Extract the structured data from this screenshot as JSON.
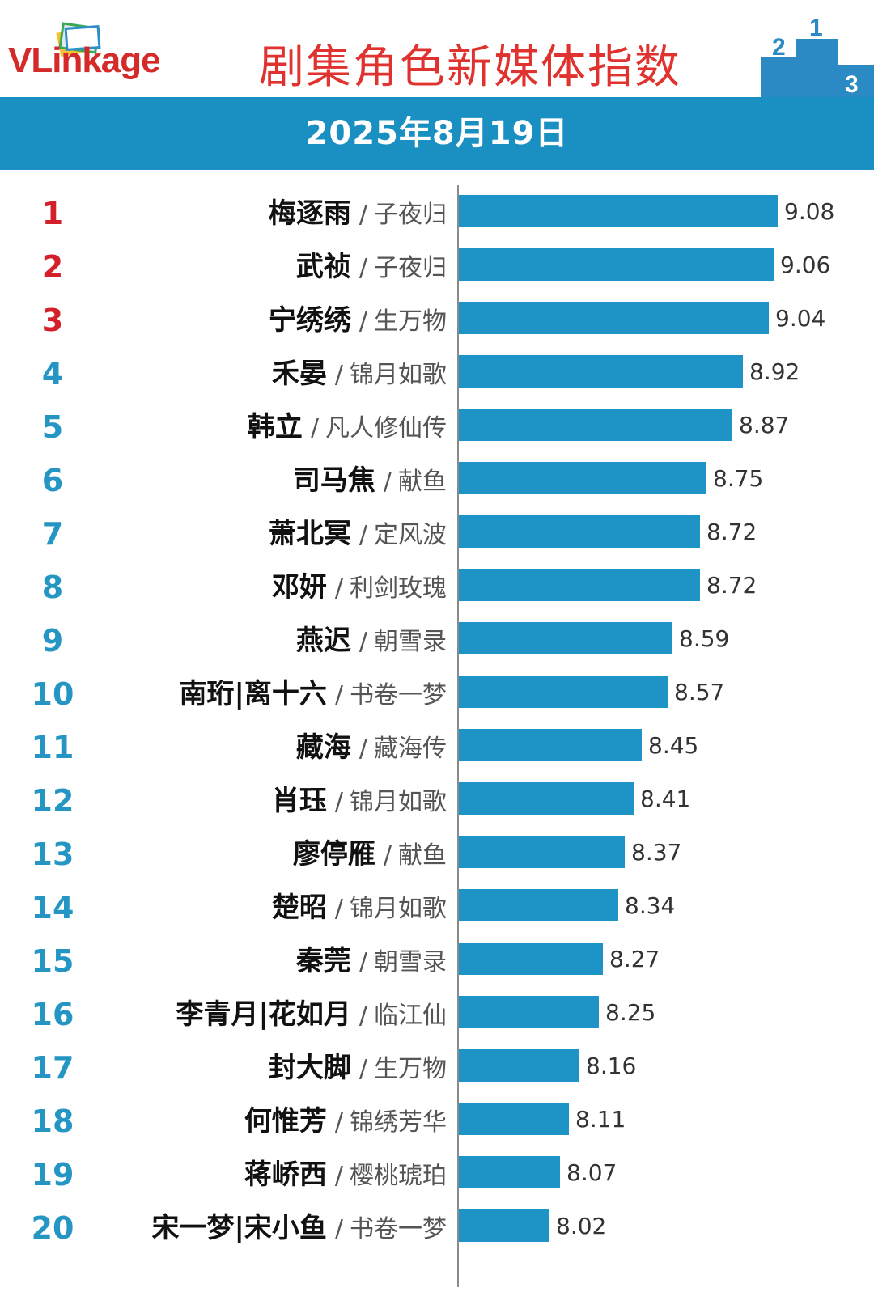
{
  "brand": {
    "logo_text_bold": "VLink",
    "logo_text_rest": "age",
    "title": "剧集角色新媒体指数",
    "podium_numbers": [
      "2",
      "1",
      "3"
    ]
  },
  "banner": {
    "date": "2025年8月19日"
  },
  "colors": {
    "banner": "#1a8fc2",
    "bar": "#1d94c5",
    "rank_top": "#d4202a",
    "rank_other": "#2596c3",
    "title": "#e0322e"
  },
  "chart_data": {
    "type": "bar",
    "orientation": "horizontal",
    "title": "剧集角色新媒体指数",
    "subtitle": "2025年8月19日",
    "xlim": [
      0,
      9.08
    ],
    "ranks": [
      "1",
      "2",
      "3",
      "4",
      "5",
      "6",
      "7",
      "8",
      "9",
      "10",
      "11",
      "12",
      "13",
      "14",
      "15",
      "16",
      "17",
      "18",
      "19",
      "20"
    ],
    "categories": [
      "梅逐雨",
      "武祯",
      "宁绣绣",
      "禾晏",
      "韩立",
      "司马焦",
      "萧北冥",
      "邓妍",
      "燕迟",
      "南珩|离十六",
      "藏海",
      "肖珏",
      "廖停雁",
      "楚昭",
      "秦莞",
      "李青月|花如月",
      "封大脚",
      "何惟芳",
      "蒋峤西",
      "宋一梦|宋小鱼"
    ],
    "dramas": [
      "子夜归",
      "子夜归",
      "生万物",
      "锦月如歌",
      "凡人修仙传",
      "献鱼",
      "定风波",
      "利剑玫瑰",
      "朝雪录",
      "书卷一梦",
      "藏海传",
      "锦月如歌",
      "献鱼",
      "锦月如歌",
      "朝雪录",
      "临江仙",
      "生万物",
      "锦绣芳华",
      "樱桃琥珀",
      "书卷一梦"
    ],
    "values": [
      9.08,
      9.06,
      9.04,
      8.92,
      8.87,
      8.75,
      8.72,
      8.72,
      8.59,
      8.57,
      8.45,
      8.41,
      8.37,
      8.34,
      8.27,
      8.25,
      8.16,
      8.11,
      8.07,
      8.02
    ],
    "value_labels": [
      "9.08",
      "9.06",
      "9.04",
      "8.92",
      "8.87",
      "8.75",
      "8.72",
      "8.72",
      "8.59",
      "8.57",
      "8.45",
      "8.41",
      "8.37",
      "8.34",
      "8.27",
      "8.25",
      "8.16",
      "8.11",
      "8.07",
      "8.02"
    ],
    "separator": "/"
  }
}
